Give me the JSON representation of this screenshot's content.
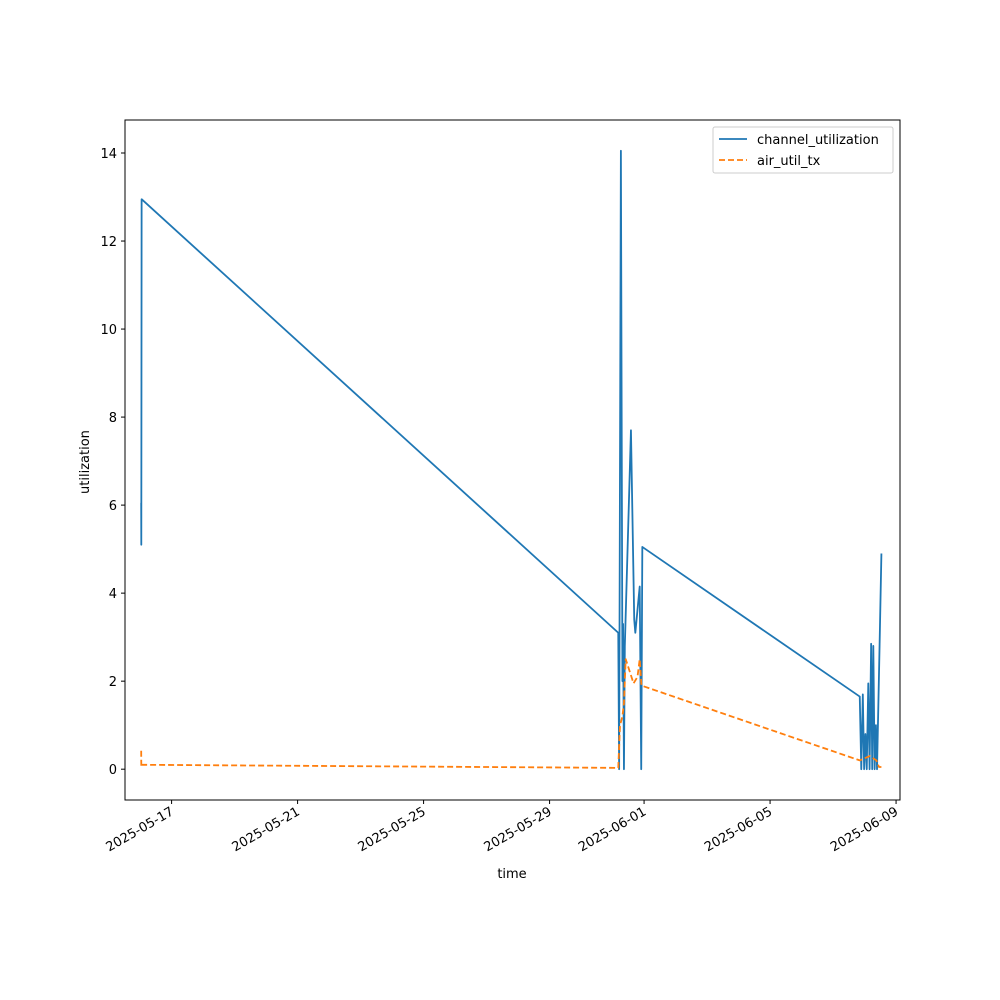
{
  "chart_data": {
    "type": "line",
    "title": "",
    "xlabel": "time",
    "ylabel": "utilization",
    "x_type": "date",
    "xlim": [
      "2025-05-15T12:30",
      "2025-06-09T03:00"
    ],
    "ylim": [
      -0.7,
      14.75
    ],
    "x_ticks": [
      "2025-05-17",
      "2025-05-21",
      "2025-05-25",
      "2025-05-29",
      "2025-06-01",
      "2025-06-05",
      "2025-06-09"
    ],
    "y_ticks": [
      0,
      2,
      4,
      6,
      8,
      10,
      12,
      14
    ],
    "grid": false,
    "legend_position": "top-right",
    "series": [
      {
        "name": "channel_utilization",
        "color": "#1f77b4",
        "style": "solid",
        "points": [
          [
            "2025-05-16T00:50",
            6.05
          ],
          [
            "2025-05-16T00:55",
            5.1
          ],
          [
            "2025-05-16T01:10",
            12.95
          ],
          [
            "2025-05-31T04:20",
            3.1
          ],
          [
            "2025-05-31T05:00",
            0.0
          ],
          [
            "2025-05-31T06:20",
            14.05
          ],
          [
            "2025-05-31T07:30",
            2.0
          ],
          [
            "2025-05-31T08:00",
            3.3
          ],
          [
            "2025-05-31T08:40",
            0.0
          ],
          [
            "2025-05-31T09:20",
            2.8
          ],
          [
            "2025-05-31T14:00",
            7.7
          ],
          [
            "2025-05-31T16:30",
            3.4
          ],
          [
            "2025-05-31T17:20",
            3.1
          ],
          [
            "2025-05-31T20:40",
            4.15
          ],
          [
            "2025-05-31T21:50",
            0.0
          ],
          [
            "2025-05-31T22:40",
            5.05
          ],
          [
            "2025-06-07T20:20",
            1.65
          ],
          [
            "2025-06-07T21:30",
            0.0
          ],
          [
            "2025-06-07T22:40",
            1.7
          ],
          [
            "2025-06-07T23:40",
            0.0
          ],
          [
            "2025-06-08T00:40",
            0.8
          ],
          [
            "2025-06-08T01:40",
            0.0
          ],
          [
            "2025-06-08T02:50",
            1.95
          ],
          [
            "2025-06-08T03:50",
            0.0
          ],
          [
            "2025-06-08T05:00",
            2.85
          ],
          [
            "2025-06-08T05:50",
            0.0
          ],
          [
            "2025-06-08T06:40",
            2.8
          ],
          [
            "2025-06-08T07:40",
            0.0
          ],
          [
            "2025-06-08T08:40",
            1.0
          ],
          [
            "2025-06-08T09:30",
            0.0
          ],
          [
            "2025-06-08T11:30",
            2.9
          ],
          [
            "2025-06-08T12:50",
            4.9
          ]
        ]
      },
      {
        "name": "air_util_tx",
        "color": "#ff7f0e",
        "style": "dashed",
        "points": [
          [
            "2025-05-16T00:50",
            0.42
          ],
          [
            "2025-05-16T00:55",
            0.05
          ],
          [
            "2025-05-16T01:10",
            0.1
          ],
          [
            "2025-05-31T04:20",
            0.03
          ],
          [
            "2025-05-31T05:40",
            1.0
          ],
          [
            "2025-05-31T07:30",
            1.2
          ],
          [
            "2025-05-31T08:40",
            1.5
          ],
          [
            "2025-05-31T10:00",
            2.5
          ],
          [
            "2025-05-31T16:00",
            1.95
          ],
          [
            "2025-05-31T19:00",
            2.1
          ],
          [
            "2025-05-31T20:40",
            2.5
          ],
          [
            "2025-05-31T22:00",
            1.9
          ],
          [
            "2025-06-07T20:20",
            0.2
          ],
          [
            "2025-06-08T04:00",
            0.3
          ],
          [
            "2025-06-08T09:00",
            0.2
          ],
          [
            "2025-06-08T11:00",
            0.05
          ],
          [
            "2025-06-08T12:50",
            0.05
          ]
        ]
      }
    ]
  }
}
